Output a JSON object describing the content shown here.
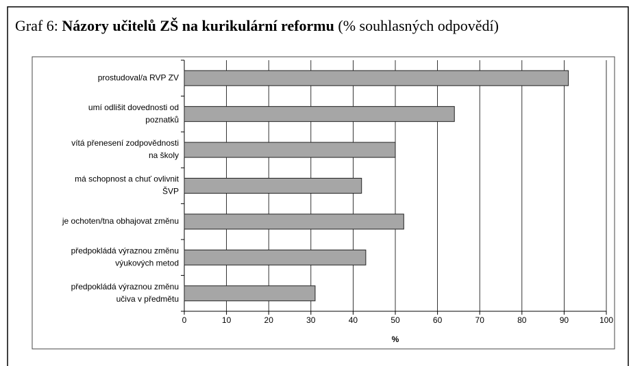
{
  "chart_data": {
    "type": "bar",
    "orientation": "horizontal",
    "title": {
      "prefix": "Graf 6:",
      "main": "Názory učitelů ZŠ na kurikulární reformu",
      "note": "(% souhlasných odpovědí)"
    },
    "categories": [
      [
        "prostudoval/a  RVP ZV"
      ],
      [
        "umí odlišit dovednosti od",
        "poznatků"
      ],
      [
        "vítá přenesení zodpovědnosti",
        "na školy"
      ],
      [
        "má schopnost a chuť ovlivnit",
        "ŠVP"
      ],
      [
        "je ochoten/tna obhajovat změnu"
      ],
      [
        "předpokládá výraznou změnu",
        "výukových metod"
      ],
      [
        "předpokládá výraznou změnu",
        "učiva v předmětu"
      ]
    ],
    "values": [
      91,
      64,
      50,
      42,
      52,
      43,
      31
    ],
    "color": "#a6a6a6",
    "xlim": [
      0,
      100
    ],
    "xticks": [
      0,
      10,
      20,
      30,
      40,
      50,
      60,
      70,
      80,
      90,
      100
    ],
    "xlabel": "%",
    "grid": true
  }
}
